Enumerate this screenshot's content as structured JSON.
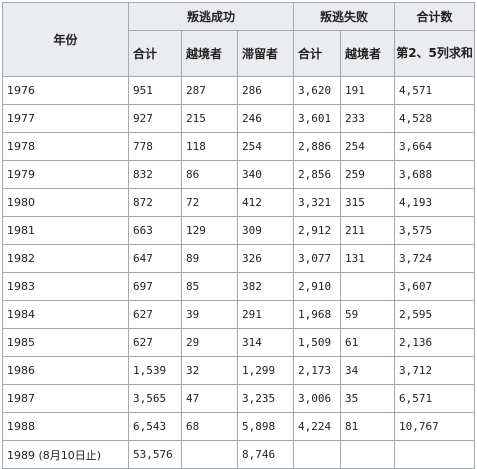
{
  "table": {
    "headers": {
      "year": "年份",
      "success_group": "叛逃成功",
      "failure_group": "叛逃失败",
      "total_group": "合计数",
      "total_sub": "第2、5列求和",
      "sub_total": "合计",
      "sub_border": "越境者",
      "sub_stay": "滞留者"
    },
    "rows": [
      {
        "year": "1976",
        "success_total": "951",
        "success_border": "287",
        "success_stay": "286",
        "fail_total": "3,620",
        "fail_border": "191",
        "sum": "4,571"
      },
      {
        "year": "1977",
        "success_total": "927",
        "success_border": "215",
        "success_stay": "246",
        "fail_total": "3,601",
        "fail_border": "233",
        "sum": "4,528"
      },
      {
        "year": "1978",
        "success_total": "778",
        "success_border": "118",
        "success_stay": "254",
        "fail_total": "2,886",
        "fail_border": "254",
        "sum": "3,664"
      },
      {
        "year": "1979",
        "success_total": "832",
        "success_border": "86",
        "success_stay": "340",
        "fail_total": "2,856",
        "fail_border": "259",
        "sum": "3,688"
      },
      {
        "year": "1980",
        "success_total": "872",
        "success_border": "72",
        "success_stay": "412",
        "fail_total": "3,321",
        "fail_border": "315",
        "sum": "4,193"
      },
      {
        "year": "1981",
        "success_total": "663",
        "success_border": "129",
        "success_stay": "309",
        "fail_total": "2,912",
        "fail_border": "211",
        "sum": "3,575"
      },
      {
        "year": "1982",
        "success_total": "647",
        "success_border": "89",
        "success_stay": "326",
        "fail_total": "3,077",
        "fail_border": "131",
        "sum": "3,724"
      },
      {
        "year": "1983",
        "success_total": "697",
        "success_border": "85",
        "success_stay": "382",
        "fail_total": "2,910",
        "fail_border": "",
        "sum": "3,607"
      },
      {
        "year": "1984",
        "success_total": "627",
        "success_border": "39",
        "success_stay": "291",
        "fail_total": "1,968",
        "fail_border": "59",
        "sum": "2,595"
      },
      {
        "year": "1985",
        "success_total": "627",
        "success_border": "29",
        "success_stay": "314",
        "fail_total": "1,509",
        "fail_border": "61",
        "sum": "2,136"
      },
      {
        "year": "1986",
        "success_total": "1,539",
        "success_border": "32",
        "success_stay": "1,299",
        "fail_total": "2,173",
        "fail_border": "34",
        "sum": "3,712"
      },
      {
        "year": "1987",
        "success_total": "3,565",
        "success_border": "47",
        "success_stay": "3,235",
        "fail_total": "3,006",
        "fail_border": "35",
        "sum": "6,571"
      },
      {
        "year": "1988",
        "success_total": "6,543",
        "success_border": "68",
        "success_stay": "5,898",
        "fail_total": "4,224",
        "fail_border": "81",
        "sum": "10,767"
      },
      {
        "year": "1989 (8月10日止)",
        "success_total": "53,576",
        "success_border": "",
        "success_stay": "8,746",
        "fail_total": "",
        "fail_border": "",
        "sum": ""
      }
    ]
  }
}
